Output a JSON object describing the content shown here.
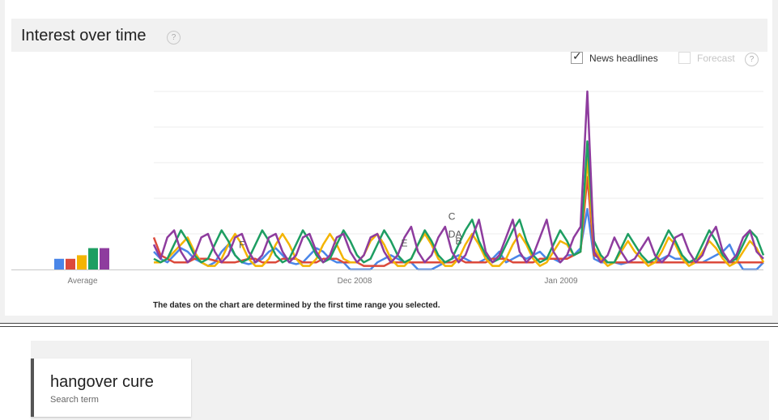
{
  "header": {
    "title": "Interest over time",
    "help_glyph": "?"
  },
  "options": {
    "news_headlines": {
      "label": "News headlines",
      "checked": true
    },
    "forecast": {
      "label": "Forecast",
      "checked": false,
      "disabled": true
    }
  },
  "chart_data": {
    "type": "line",
    "x_ticks": [
      "Dec 2008",
      "Jan 2009"
    ],
    "ylim": [
      0,
      100
    ],
    "grid": true,
    "average_label": "Average",
    "average": [
      {
        "color": "#4a86e8",
        "value": 6
      },
      {
        "color": "#dc4a3b",
        "value": 6
      },
      {
        "color": "#f4b400",
        "value": 8
      },
      {
        "color": "#1e9e62",
        "value": 12
      },
      {
        "color": "#8e3c9e",
        "value": 12
      }
    ],
    "series": [
      {
        "color": "#4a86e8",
        "values": [
          10,
          6,
          4,
          8,
          12,
          10,
          6,
          4,
          2,
          4,
          10,
          14,
          8,
          4,
          3,
          4,
          6,
          10,
          12,
          8,
          4,
          3,
          4,
          8,
          12,
          10,
          6,
          4,
          4,
          0,
          0,
          0,
          0,
          4,
          6,
          8,
          6,
          4,
          4,
          0,
          0,
          0,
          2,
          4,
          6,
          8,
          6,
          4,
          4,
          6,
          6,
          10,
          4,
          6,
          8,
          6,
          8,
          10,
          6,
          6,
          4,
          8,
          8,
          12,
          34,
          6,
          4,
          4,
          4,
          3,
          4,
          4,
          4,
          4,
          4,
          6,
          8,
          6,
          6,
          4,
          4,
          4,
          6,
          8,
          10,
          14,
          6,
          0,
          0,
          0,
          4
        ]
      },
      {
        "color": "#dc4a3b",
        "values": [
          18,
          8,
          6,
          4,
          4,
          4,
          6,
          6,
          6,
          5,
          4,
          4,
          4,
          5,
          6,
          6,
          4,
          4,
          4,
          6,
          6,
          6,
          4,
          4,
          4,
          6,
          6,
          6,
          4,
          4,
          4,
          2,
          2,
          2,
          2,
          4,
          4,
          4,
          4,
          4,
          4,
          4,
          4,
          4,
          4,
          6,
          4,
          4,
          4,
          4,
          6,
          6,
          6,
          4,
          4,
          4,
          4,
          6,
          6,
          6,
          6,
          6,
          8,
          10,
          52,
          8,
          6,
          4,
          4,
          4,
          4,
          4,
          4,
          4,
          4,
          4,
          4,
          4,
          4,
          4,
          4,
          4,
          4,
          4,
          4,
          4,
          4,
          4,
          4,
          4,
          4
        ]
      },
      {
        "color": "#f4b400",
        "values": [
          4,
          4,
          6,
          10,
          14,
          18,
          10,
          4,
          2,
          2,
          6,
          14,
          20,
          14,
          6,
          2,
          2,
          6,
          14,
          20,
          14,
          6,
          2,
          2,
          6,
          14,
          20,
          14,
          6,
          4,
          4,
          8,
          16,
          20,
          14,
          6,
          2,
          2,
          6,
          14,
          20,
          14,
          6,
          2,
          2,
          6,
          14,
          20,
          14,
          6,
          2,
          2,
          6,
          14,
          20,
          14,
          6,
          2,
          4,
          10,
          16,
          14,
          8,
          10,
          62,
          12,
          6,
          2,
          4,
          10,
          16,
          10,
          6,
          2,
          4,
          10,
          18,
          14,
          6,
          2,
          4,
          10,
          16,
          12,
          6,
          2,
          4,
          10,
          16,
          12,
          4
        ]
      },
      {
        "color": "#1e9e62",
        "values": [
          6,
          4,
          6,
          14,
          22,
          16,
          8,
          4,
          6,
          14,
          22,
          16,
          8,
          4,
          6,
          14,
          22,
          16,
          8,
          4,
          6,
          14,
          22,
          16,
          8,
          4,
          6,
          14,
          22,
          16,
          8,
          4,
          6,
          14,
          22,
          16,
          8,
          4,
          6,
          14,
          22,
          16,
          8,
          4,
          6,
          14,
          22,
          28,
          16,
          8,
          4,
          6,
          14,
          22,
          28,
          16,
          8,
          4,
          6,
          14,
          22,
          16,
          8,
          10,
          72,
          16,
          8,
          4,
          4,
          12,
          20,
          14,
          8,
          4,
          6,
          14,
          22,
          16,
          8,
          4,
          6,
          14,
          22,
          16,
          8,
          4,
          6,
          14,
          22,
          18,
          8
        ]
      },
      {
        "color": "#8e3c9e",
        "values": [
          14,
          6,
          18,
          22,
          10,
          4,
          8,
          18,
          20,
          10,
          4,
          8,
          18,
          20,
          10,
          4,
          8,
          18,
          20,
          10,
          4,
          8,
          18,
          20,
          10,
          4,
          8,
          18,
          20,
          10,
          4,
          8,
          18,
          20,
          10,
          4,
          8,
          18,
          24,
          10,
          4,
          8,
          18,
          24,
          10,
          4,
          8,
          18,
          28,
          10,
          4,
          8,
          18,
          28,
          10,
          4,
          8,
          18,
          28,
          10,
          4,
          8,
          18,
          24,
          100,
          10,
          4,
          8,
          18,
          10,
          4,
          6,
          12,
          18,
          8,
          4,
          8,
          18,
          20,
          10,
          4,
          8,
          18,
          24,
          10,
          4,
          8,
          18,
          22,
          10,
          6
        ]
      }
    ],
    "annotations": [
      {
        "letter": "F",
        "index": 13,
        "value": 12
      },
      {
        "letter": "E",
        "index": 37,
        "value": 13
      },
      {
        "letter": "D",
        "index": 44,
        "value": 18
      },
      {
        "letter": "C",
        "index": 44,
        "value": 28
      },
      {
        "letter": "B",
        "index": 45,
        "value": 14
      },
      {
        "letter": "A",
        "index": 45,
        "value": 18
      }
    ],
    "footnote": "The dates on the chart are determined by the first time range you selected."
  },
  "search_term": {
    "name": "hangover cure",
    "sublabel": "Search term"
  }
}
